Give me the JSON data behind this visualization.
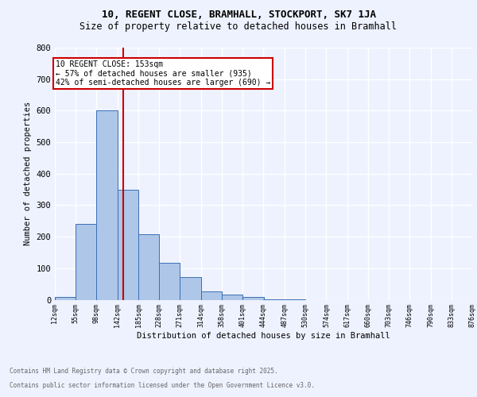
{
  "title1": "10, REGENT CLOSE, BRAMHALL, STOCKPORT, SK7 1JA",
  "title2": "Size of property relative to detached houses in Bramhall",
  "xlabel": "Distribution of detached houses by size in Bramhall",
  "ylabel": "Number of detached properties",
  "bar_edges": [
    12,
    55,
    98,
    142,
    185,
    228,
    271,
    314,
    358,
    401,
    444,
    487,
    530,
    574,
    617,
    660,
    703,
    746,
    790,
    833,
    876
  ],
  "bar_heights": [
    8,
    240,
    600,
    350,
    207,
    117,
    72,
    27,
    17,
    9,
    2,
    1,
    0,
    0,
    0,
    0,
    0,
    0,
    0,
    0
  ],
  "bar_color": "#aec6e8",
  "bar_edge_color": "#3a6fb5",
  "vline_x": 153,
  "vline_color": "#cc0000",
  "annotation_text": "10 REGENT CLOSE: 153sqm\n← 57% of detached houses are smaller (935)\n42% of semi-detached houses are larger (690) →",
  "annotation_box_color": "#cc0000",
  "annotation_text_color": "#000000",
  "background_color": "#eef2ff",
  "grid_color": "#ffffff",
  "tick_labels": [
    "12sqm",
    "55sqm",
    "98sqm",
    "142sqm",
    "185sqm",
    "228sqm",
    "271sqm",
    "314sqm",
    "358sqm",
    "401sqm",
    "444sqm",
    "487sqm",
    "530sqm",
    "574sqm",
    "617sqm",
    "660sqm",
    "703sqm",
    "746sqm",
    "790sqm",
    "833sqm",
    "876sqm"
  ],
  "ylim": [
    0,
    800
  ],
  "yticks": [
    0,
    100,
    200,
    300,
    400,
    500,
    600,
    700,
    800
  ],
  "footnote1": "Contains HM Land Registry data © Crown copyright and database right 2025.",
  "footnote2": "Contains public sector information licensed under the Open Government Licence v3.0."
}
